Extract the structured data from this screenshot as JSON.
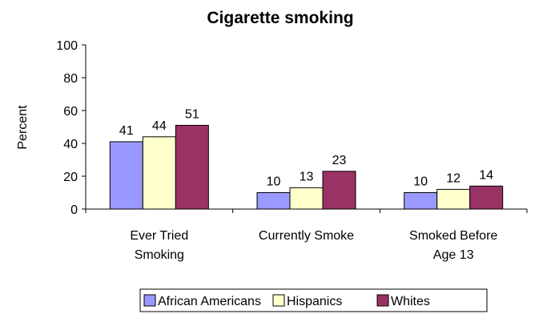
{
  "chart_data": {
    "type": "bar",
    "title": "Cigarette smoking",
    "xlabel": "",
    "ylabel": "Percent",
    "ylim": [
      0,
      100
    ],
    "yticks": [
      0,
      20,
      40,
      60,
      80,
      100
    ],
    "categories": [
      [
        "Ever Tried",
        "Smoking"
      ],
      [
        "Currently Smoke"
      ],
      [
        "Smoked Before",
        "Age 13"
      ]
    ],
    "series": [
      {
        "name": "African Americans",
        "color": "#9999ff",
        "values": [
          41,
          10,
          10
        ]
      },
      {
        "name": "Hispanics",
        "color": "#ffffcc",
        "values": [
          44,
          13,
          12
        ]
      },
      {
        "name": "Whites",
        "color": "#993366",
        "values": [
          51,
          23,
          14
        ]
      }
    ],
    "grid": false,
    "legend": "bottom"
  }
}
